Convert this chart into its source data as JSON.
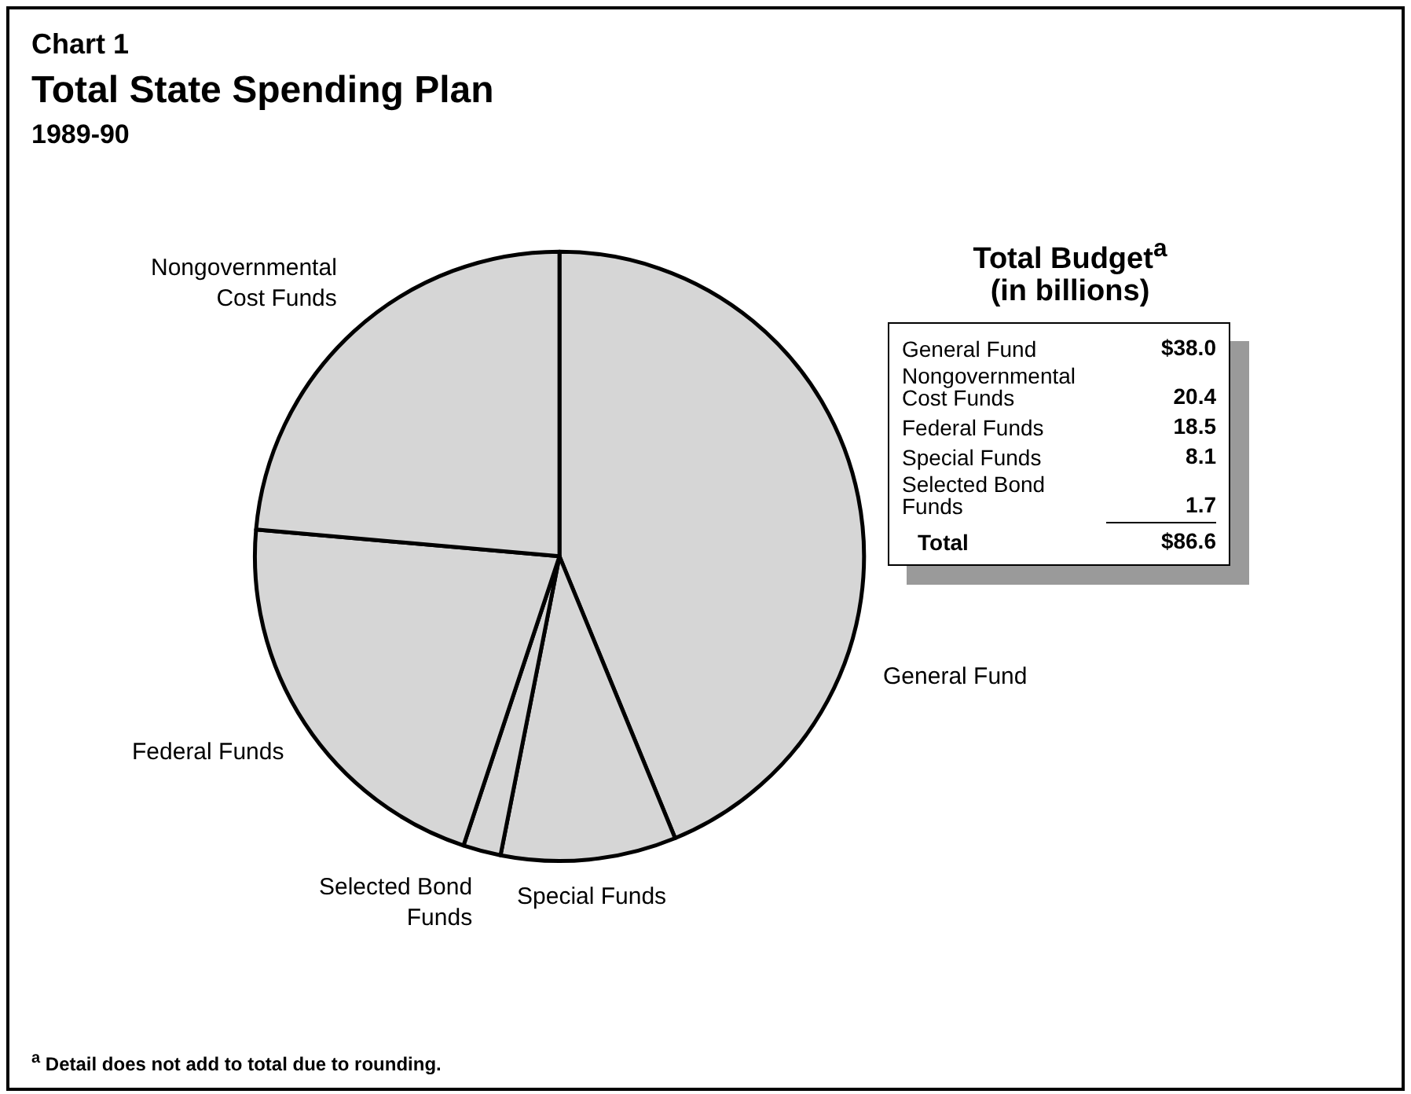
{
  "chart_data": [
    {
      "type": "pie",
      "title": "Total State Spending Plan",
      "subtitle": "1989-90",
      "annotations": [
        "Chart 1",
        "$^{a}$ Detail does not add to total due to rounding."
      ],
      "categories": [
        "General Fund",
        "Special Funds",
        "Selected Bond Funds",
        "Federal Funds",
        "Nongovernmental Cost Funds"
      ],
      "values": [
        43.8,
        9.3,
        2.0,
        21.3,
        23.6
      ],
      "colors": [
        "#d6d6d6",
        "#d6d6d6",
        "#d6d6d6",
        "#d6d6d6",
        "#d6d6d6"
      ],
      "legend": false
    },
    {
      "type": "other",
      "title": "Total Budget$^{a}$ (in billions)",
      "annotations": [
        "General Fund",
        "$38.0",
        "Nongovernmental Cost Funds",
        "20.4",
        "Federal Funds",
        "18.5",
        "Special Funds",
        "8.1",
        "Selected Bond Funds",
        "1.7",
        "Total",
        "$86.6"
      ]
    }
  ]
}
